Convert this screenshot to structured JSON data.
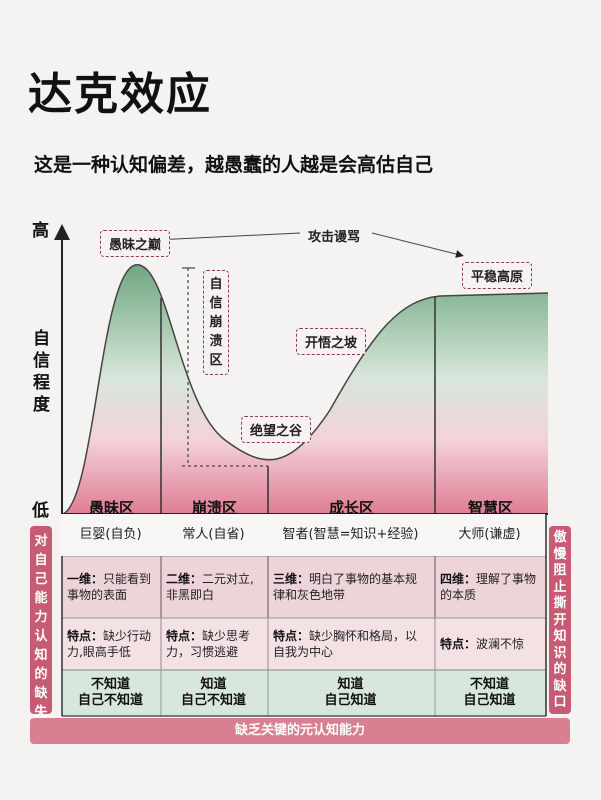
{
  "title": "达克效应",
  "subtitle": "这是一种认知偏差，越愚蠢的人越是会高估自己",
  "axis": {
    "y_high": "高",
    "y_low": "低",
    "y_label": [
      "自",
      "信",
      "程",
      "度"
    ]
  },
  "tags": {
    "peak": "愚昧之巅",
    "collapse": [
      "自",
      "信",
      "崩",
      "溃",
      "区"
    ],
    "valley": "绝望之谷",
    "slope": "开悟之坡",
    "plateau": "平稳高原",
    "attack": "攻击谩骂"
  },
  "zones": [
    {
      "name": "愚昧区",
      "role": "巨婴(自负)",
      "dim_label": "一维：",
      "dim_text": "只能看到事物的表面",
      "feat_label": "特点：",
      "feat_text": "缺少行动力,眼高手低",
      "know": "不知道\n自己不知道"
    },
    {
      "name": "崩溃区",
      "role": "常人(自省)",
      "dim_label": "二维：",
      "dim_text": "二元对立,非黑即白",
      "feat_label": "特点：",
      "feat_text": "缺少思考力，习惯逃避",
      "know": "知道\n自己不知道"
    },
    {
      "name": "成长区",
      "role": "智者(智慧=知识+经验)",
      "dim_label": "三维：",
      "dim_text": "明白了事物的基本规律和灰色地带",
      "feat_label": "特点：",
      "feat_text": "缺少胸怀和格局，以自我为中心",
      "know": "知道\n自己知道"
    },
    {
      "name": "智慧区",
      "role": "大师(谦虚)",
      "dim_label": "四维：",
      "dim_text": "理解了事物的本质",
      "feat_label": "特点：",
      "feat_text": "波澜不惊",
      "know": "不知道\n自己知道"
    }
  ],
  "left_side": [
    "对",
    "自",
    "己",
    "能",
    "力",
    "认",
    "知",
    "的",
    "缺",
    "失"
  ],
  "right_side": [
    "傲",
    "慢",
    "阻",
    "止",
    "撕",
    "开",
    "知",
    "识",
    "的",
    "缺",
    "口"
  ],
  "bottom_bar": "缺乏关键的元认知能力",
  "colors": {
    "accent": "#c85b74",
    "green": "#7fae8c",
    "pink": "#e9a4b2"
  }
}
